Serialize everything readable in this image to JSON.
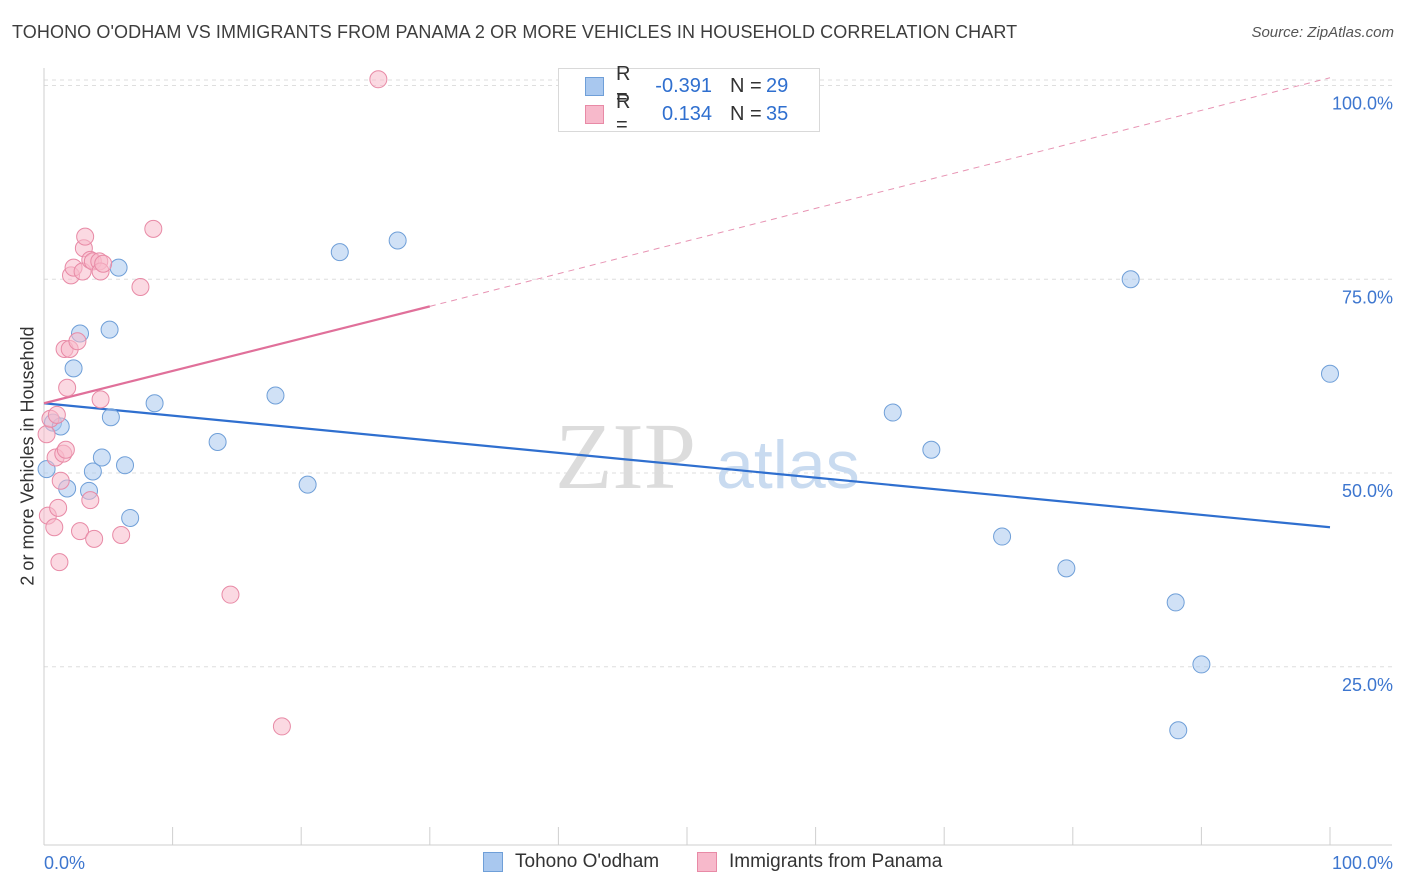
{
  "title": "TOHONO O'ODHAM VS IMMIGRANTS FROM PANAMA 2 OR MORE VEHICLES IN HOUSEHOLD CORRELATION CHART",
  "source": "Source: ZipAtlas.com",
  "watermark": {
    "zip": "ZIP",
    "atlas": "atlas"
  },
  "legend": {
    "rows": [
      {
        "r_label": "R =",
        "r_value": "-0.391",
        "n_label": "N =",
        "n_value": "29",
        "color": "#a9c8ef",
        "border": "#6f9fd8"
      },
      {
        "r_label": "R =",
        "r_value": "0.134",
        "n_label": "N =",
        "n_value": "35",
        "color": "#f7b9cb",
        "border": "#e88aa6"
      }
    ]
  },
  "bottom_legend": [
    {
      "label": "Tohono O'odham",
      "color": "#a9c8ef",
      "border": "#6f9fd8"
    },
    {
      "label": "Immigrants from Panama",
      "color": "#f7b9cb",
      "border": "#e88aa6"
    }
  ],
  "chart_data": {
    "type": "scatter",
    "title": "TOHONO O'ODHAM VS IMMIGRANTS FROM PANAMA 2 OR MORE VEHICLES IN HOUSEHOLD CORRELATION CHART",
    "xlabel": "",
    "ylabel": "2 or more Vehicles in Household",
    "xlim": [
      0,
      100
    ],
    "ylim": [
      2,
      102
    ],
    "x_tick_labels": [
      "0.0%",
      "100.0%"
    ],
    "y_ticks": [
      25,
      50,
      75,
      100
    ],
    "y_tick_labels": [
      "25.0%",
      "50.0%",
      "75.0%",
      "100.0%"
    ],
    "grid": true,
    "series": [
      {
        "name": "Tohono O'odham",
        "color": "#a9c8ef",
        "stroke": "#6f9fd8",
        "line_color": "#2f6fcf",
        "trend": {
          "x": [
            0,
            100
          ],
          "y": [
            59.0,
            43.0
          ],
          "dashed_extension": false
        },
        "points": [
          [
            0.2,
            50.5
          ],
          [
            0.7,
            56.5
          ],
          [
            1.3,
            56.0
          ],
          [
            1.8,
            48.0
          ],
          [
            2.3,
            63.5
          ],
          [
            2.8,
            68.0
          ],
          [
            3.5,
            47.7
          ],
          [
            3.8,
            50.2
          ],
          [
            4.5,
            52.0
          ],
          [
            5.1,
            68.5
          ],
          [
            5.2,
            57.2
          ],
          [
            5.8,
            76.5
          ],
          [
            6.3,
            51.0
          ],
          [
            6.7,
            44.2
          ],
          [
            8.6,
            59.0
          ],
          [
            13.5,
            54.0
          ],
          [
            18.0,
            60.0
          ],
          [
            20.5,
            48.5
          ],
          [
            23.0,
            78.5
          ],
          [
            27.5,
            80.0
          ],
          [
            66.0,
            57.8
          ],
          [
            69.0,
            53.0
          ],
          [
            74.5,
            41.8
          ],
          [
            79.5,
            37.7
          ],
          [
            84.5,
            75.0
          ],
          [
            88.0,
            33.3
          ],
          [
            90.0,
            25.3
          ],
          [
            88.2,
            16.8
          ],
          [
            100.0,
            62.8
          ]
        ]
      },
      {
        "name": "Immigrants from Panama",
        "color": "#f7b9cb",
        "stroke": "#e88aa6",
        "line_color": "#e0709a",
        "trend": {
          "x": [
            0,
            30
          ],
          "y": [
            59.0,
            71.5
          ],
          "extension_x": [
            30,
            100
          ],
          "extension_y": [
            71.5,
            101.0
          ]
        },
        "points": [
          [
            0.2,
            55.0
          ],
          [
            0.3,
            44.5
          ],
          [
            0.5,
            57.0
          ],
          [
            0.8,
            43.0
          ],
          [
            0.9,
            52.0
          ],
          [
            1.0,
            57.5
          ],
          [
            1.1,
            45.5
          ],
          [
            1.2,
            38.5
          ],
          [
            1.3,
            49.0
          ],
          [
            1.5,
            52.5
          ],
          [
            1.6,
            66.0
          ],
          [
            1.7,
            53.0
          ],
          [
            1.8,
            61.0
          ],
          [
            2.0,
            66.0
          ],
          [
            2.1,
            75.5
          ],
          [
            2.3,
            76.5
          ],
          [
            2.6,
            67.0
          ],
          [
            2.8,
            42.5
          ],
          [
            3.0,
            76.0
          ],
          [
            3.1,
            79.0
          ],
          [
            3.2,
            80.5
          ],
          [
            3.6,
            46.5
          ],
          [
            3.6,
            77.5
          ],
          [
            3.8,
            77.3
          ],
          [
            3.9,
            41.5
          ],
          [
            4.3,
            77.3
          ],
          [
            4.4,
            59.5
          ],
          [
            4.4,
            76.0
          ],
          [
            4.6,
            77.0
          ],
          [
            7.5,
            74.0
          ],
          [
            8.5,
            81.5
          ],
          [
            14.5,
            34.3
          ],
          [
            18.5,
            17.3
          ],
          [
            26.0,
            100.8
          ],
          [
            6.0,
            42.0
          ]
        ]
      }
    ]
  }
}
